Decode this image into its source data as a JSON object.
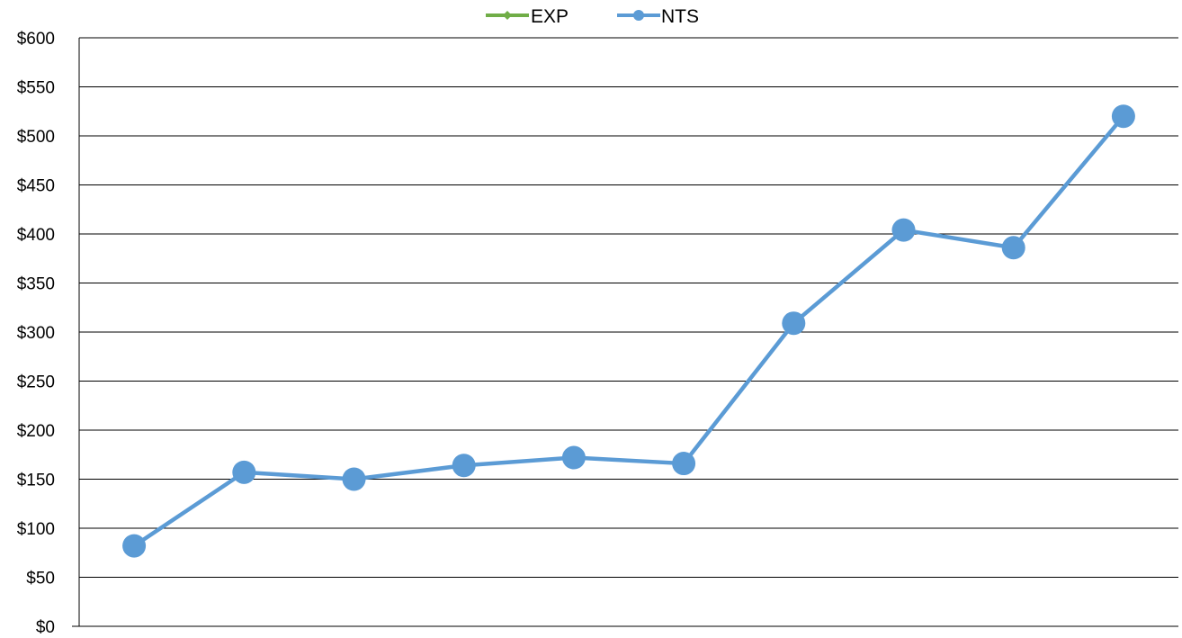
{
  "chart_data": {
    "type": "line",
    "title": "",
    "xlabel": "",
    "ylabel": "",
    "ylim": [
      0,
      600
    ],
    "y_ticks": [
      "$0",
      "$50",
      "$100",
      "$150",
      "$200",
      "$250",
      "$300",
      "$350",
      "$400",
      "$450",
      "$500",
      "$550",
      "$600"
    ],
    "y_tick_values": [
      0,
      50,
      100,
      150,
      200,
      250,
      300,
      350,
      400,
      450,
      500,
      550,
      600
    ],
    "grid": true,
    "legend_position": "top-center",
    "series": [
      {
        "name": "EXP",
        "color": "#70ad47",
        "values": []
      },
      {
        "name": "NTS",
        "color": "#5b9bd5",
        "values": [
          82,
          157,
          150,
          164,
          172,
          166,
          309,
          404,
          386,
          520
        ]
      }
    ]
  }
}
